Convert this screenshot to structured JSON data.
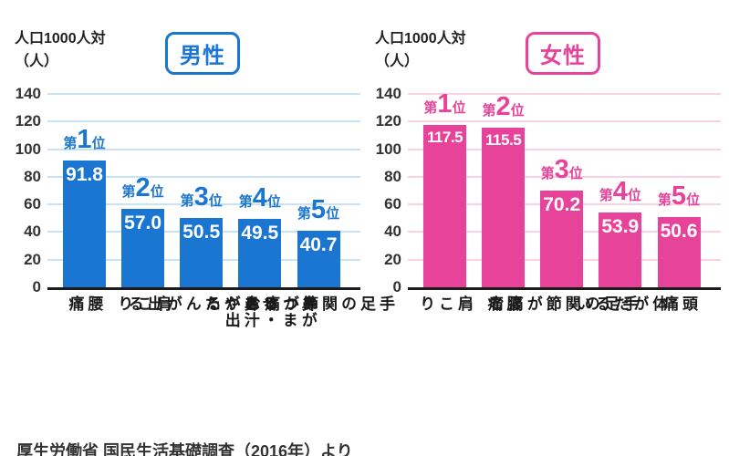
{
  "source": "厚生労働省 国民生活基礎調査（2016年）より",
  "chart_data": [
    {
      "type": "bar",
      "title": "男性",
      "ylabel_line1": "人口1000人対",
      "ylabel_line2": "（人）",
      "ylim": [
        0,
        140
      ],
      "yticks": [
        0,
        20,
        40,
        60,
        80,
        100,
        120,
        140
      ],
      "grid": true,
      "legend_position": "none",
      "categories": [
        "腰痛",
        "肩こり",
        "せきやたんが出る",
        "鼻がつまる・鼻汁が出る",
        "手足の関節が痛む"
      ],
      "category_display": [
        "腰痛",
        "肩こり",
        "せきやたんが\n出る",
        "鼻がつまる・\n鼻汁が出る",
        "手足の関節が\n痛む"
      ],
      "values": [
        91.8,
        57.0,
        50.5,
        49.5,
        40.7
      ],
      "value_labels": [
        "91.8",
        "57.0",
        "50.5",
        "49.5",
        "40.7"
      ],
      "rank_labels": [
        "第1位",
        "第2位",
        "第3位",
        "第4位",
        "第5位"
      ],
      "bar_color": "#1b76d2",
      "grid_color": "#c8e2f6"
    },
    {
      "type": "bar",
      "title": "女性",
      "ylabel_line1": "人口1000人対",
      "ylabel_line2": "（人）",
      "ylim": [
        0,
        140
      ],
      "yticks": [
        0,
        20,
        40,
        60,
        80,
        100,
        120,
        140
      ],
      "grid": true,
      "legend_position": "none",
      "categories": [
        "肩こり",
        "腰痛",
        "手足の関節が痛む",
        "体がだるい",
        "頭痛"
      ],
      "category_display": [
        "肩こり",
        "腰痛",
        "手足の関節が\n痛む",
        "体がだるい",
        "頭痛"
      ],
      "values": [
        117.5,
        115.5,
        70.2,
        53.9,
        50.6
      ],
      "value_labels": [
        "117.5",
        "115.5",
        "70.2",
        "53.9",
        "50.6"
      ],
      "rank_labels": [
        "第1位",
        "第2位",
        "第3位",
        "第4位",
        "第5位"
      ],
      "bar_color": "#e8439a",
      "grid_color": "#f9d2e3"
    }
  ]
}
